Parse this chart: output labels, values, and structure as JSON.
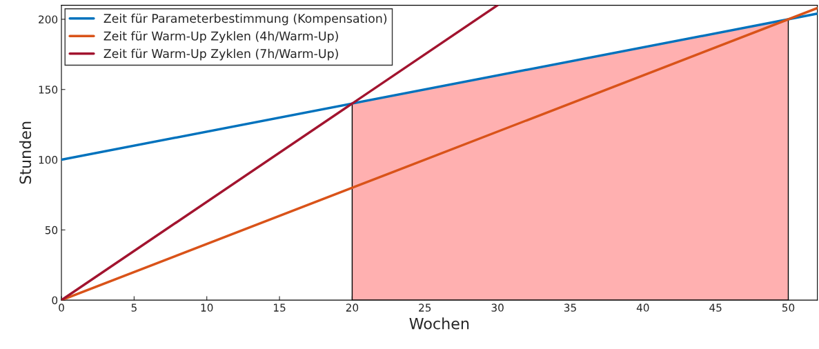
{
  "chart_data": {
    "type": "line",
    "xlabel": "Wochen",
    "ylabel": "Stunden",
    "xlim": [
      0,
      52
    ],
    "ylim": [
      0,
      210
    ],
    "xticks": [
      0,
      5,
      10,
      15,
      20,
      25,
      30,
      35,
      40,
      45,
      50
    ],
    "yticks": [
      0,
      50,
      100,
      150,
      200
    ],
    "grid": false,
    "legend": "top left",
    "marker": "none",
    "line_style": "solid",
    "series": [
      {
        "type": "area",
        "x": [
          20,
          50
        ],
        "values": [
          140,
          200
        ],
        "color": "#ffb0b0"
      },
      {
        "name": "Zeit für Parameterbestimmung (Kompensation)",
        "x": [
          0,
          52
        ],
        "values": [
          100,
          204
        ],
        "color": "#0072bd"
      },
      {
        "name": "Zeit für Warm-Up Zyklen (4h/Warm-Up)",
        "x": [
          0,
          52
        ],
        "values": [
          0,
          208
        ],
        "color": "#d95319"
      },
      {
        "name": "Zeit für Warm-Up Zyklen (7h/Warm-Up)",
        "x": [
          0,
          30
        ],
        "values": [
          0,
          210
        ],
        "color": "#a2142f"
      }
    ]
  }
}
